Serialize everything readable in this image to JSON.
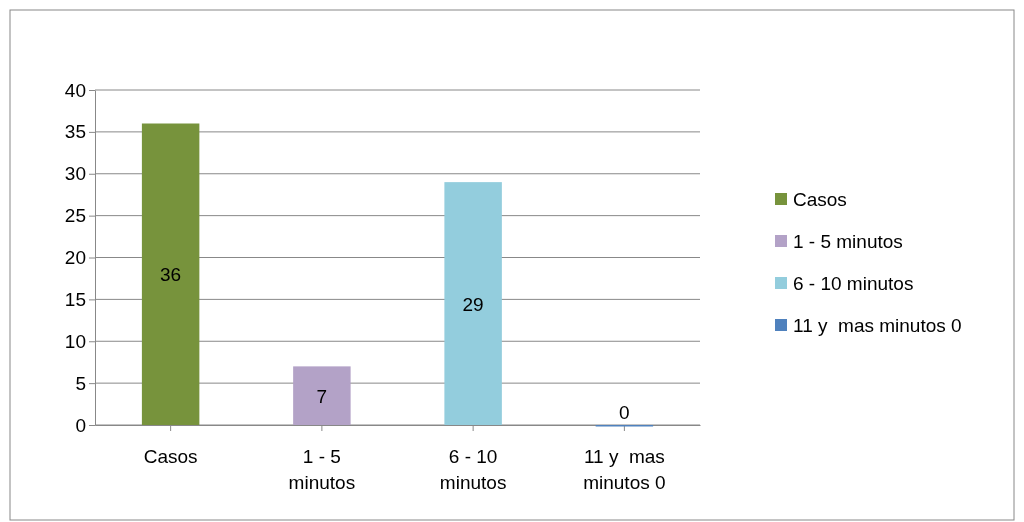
{
  "chart_data": {
    "type": "bar",
    "categories": [
      "Casos",
      "1 - 5 minutos",
      "6 - 10 minutos",
      "11 y  mas minutos 0"
    ],
    "series": [
      {
        "name": "Casos",
        "color": "#77933c",
        "values": [
          36,
          null,
          null,
          null
        ]
      },
      {
        "name": "1 - 5 minutos",
        "color": "#b3a2c7",
        "values": [
          null,
          7,
          null,
          null
        ]
      },
      {
        "name": "6 - 10 minutos",
        "color": "#93cddd",
        "values": [
          null,
          null,
          29,
          null
        ]
      },
      {
        "name": "11 y  mas minutos 0",
        "color": "#4f81bd",
        "values": [
          null,
          null,
          null,
          0
        ]
      }
    ],
    "ylim": [
      0,
      40
    ],
    "yticks": [
      0,
      5,
      10,
      15,
      20,
      25,
      30,
      35,
      40
    ],
    "grid": "y",
    "legend": "right",
    "data_labels": true
  }
}
